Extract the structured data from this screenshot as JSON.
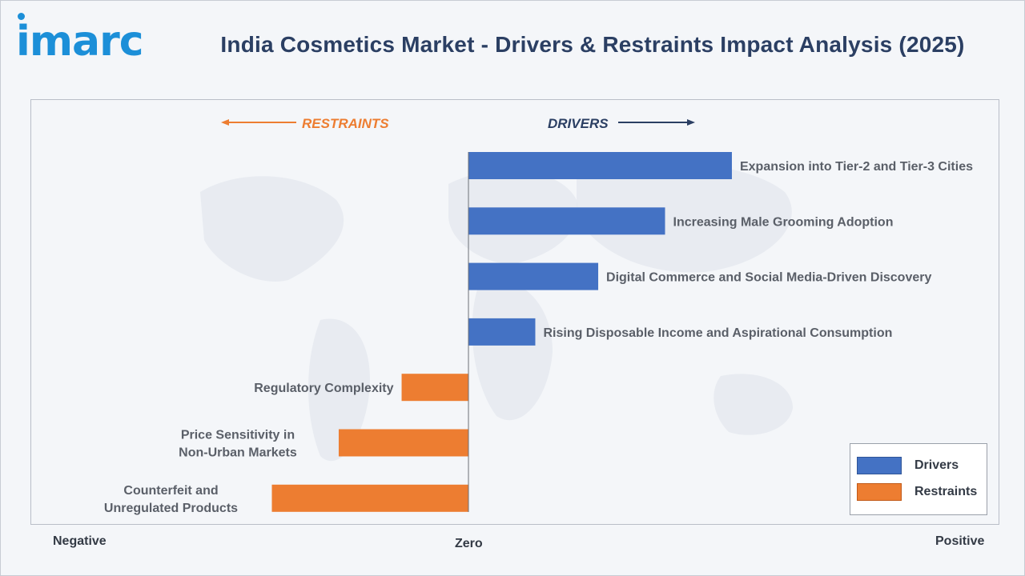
{
  "brand": {
    "logo_text": "imarc"
  },
  "title": "India Cosmetics Market - Drivers & Restraints Impact Analysis (2025)",
  "colors": {
    "drivers": "#4472c4",
    "restraints": "#ed7d31",
    "title": "#2b3f63",
    "brand": "#1c8fd8"
  },
  "direction_labels": {
    "restraints": "RESTRAINTS",
    "drivers": "DRIVERS"
  },
  "axis_labels": {
    "negative": "Negative",
    "zero": "Zero",
    "positive": "Positive"
  },
  "legend": [
    {
      "label": "Drivers",
      "series": "drivers"
    },
    {
      "label": "Restraints",
      "series": "restraints"
    }
  ],
  "chart_data": {
    "type": "bar",
    "orientation": "horizontal",
    "xlim": [
      -0.5,
      1.2
    ],
    "categories": [
      "Expansion into Tier-2 and Tier-3 Cities",
      "Increasing Male Grooming Adoption",
      "Digital Commerce and Social Media-Driven Discovery",
      "Rising Disposable Income and Aspirational Consumption",
      "Regulatory Complexity",
      "Price Sensitivity in Non-Urban Markets",
      "Counterfeit and Unregulated Products"
    ],
    "series": [
      {
        "name": "Drivers",
        "values": [
          0.67,
          0.5,
          0.33,
          0.17,
          null,
          null,
          null
        ]
      },
      {
        "name": "Restraints",
        "values": [
          null,
          null,
          null,
          null,
          -0.17,
          -0.33,
          -0.5
        ]
      }
    ],
    "grid": false,
    "legend_position": "bottom-right"
  }
}
